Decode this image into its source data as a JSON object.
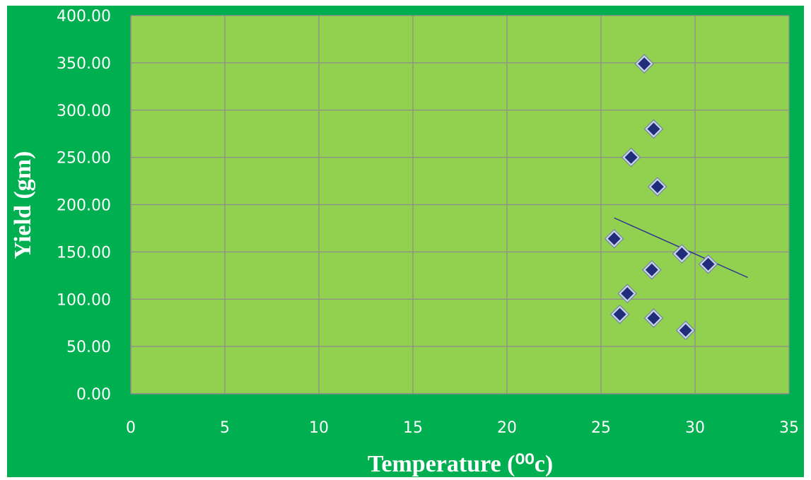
{
  "chart_data": {
    "type": "scatter",
    "xlabel": "Temperature (⁰⁰c)",
    "ylabel": "Yield (gm)",
    "xlim": [
      0,
      35
    ],
    "ylim": [
      0,
      400
    ],
    "x_ticks": [
      "0",
      "5",
      "10",
      "15",
      "20",
      "25",
      "30",
      "35"
    ],
    "y_ticks": [
      "0.00",
      "50.00",
      "100.00",
      "150.00",
      "200.00",
      "250.00",
      "300.00",
      "350.00",
      "400.00"
    ],
    "grid": true,
    "legend": "none",
    "plot_background": "#92d050",
    "frame_background": "#00b050",
    "marker": "diamond",
    "marker_color": "#1f2d7a",
    "points": [
      {
        "x": 27.3,
        "y": 349
      },
      {
        "x": 27.8,
        "y": 280
      },
      {
        "x": 26.6,
        "y": 250
      },
      {
        "x": 28.0,
        "y": 219
      },
      {
        "x": 25.7,
        "y": 164
      },
      {
        "x": 29.3,
        "y": 148
      },
      {
        "x": 30.7,
        "y": 137
      },
      {
        "x": 27.7,
        "y": 131
      },
      {
        "x": 26.4,
        "y": 106
      },
      {
        "x": 26.0,
        "y": 84
      },
      {
        "x": 27.8,
        "y": 80
      },
      {
        "x": 29.5,
        "y": 67
      }
    ],
    "trendline": {
      "type": "linear",
      "x_start": 25.7,
      "x_end": 32.8,
      "y_start": 186,
      "y_end": 123,
      "color": "#2e3192"
    }
  }
}
